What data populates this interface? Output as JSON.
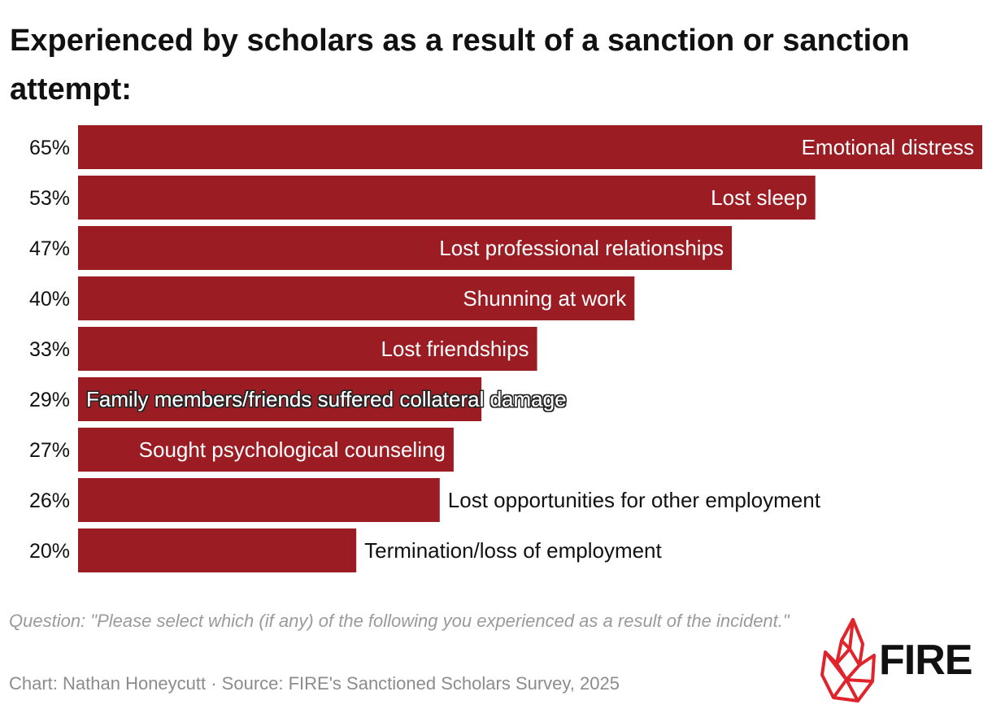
{
  "title": "Experienced by scholars as a result of a sanction or sanction attempt:",
  "chart_data": {
    "type": "bar",
    "orientation": "horizontal",
    "title": "Experienced by scholars as a result of a sanction or sanction attempt:",
    "categories": [
      "Emotional distress",
      "Lost sleep",
      "Lost professional relationships",
      "Shunning at work",
      "Lost friendships",
      "Family members/friends suffered collateral damage",
      "Sought psychological counseling",
      "Lost opportunities for other employment",
      "Termination/loss of employment"
    ],
    "values": [
      65,
      53,
      47,
      40,
      33,
      29,
      27,
      26,
      20
    ],
    "value_labels": [
      "65%",
      "53%",
      "47%",
      "40%",
      "33%",
      "29%",
      "27%",
      "26%",
      "20%"
    ],
    "xlim": [
      0,
      65
    ],
    "grid": false,
    "bar_color": "#9b1c23"
  },
  "footer": {
    "question": "Question: \"Please select which (if any) of the following you experienced as a result of the incident.\"",
    "credit": "Chart: Nathan Honeycutt · Source: FIRE's Sanctioned Scholars Survey, 2025"
  },
  "logo": {
    "text": "FIRE",
    "icon": "flame-logo-icon",
    "color": "#e0242b"
  }
}
